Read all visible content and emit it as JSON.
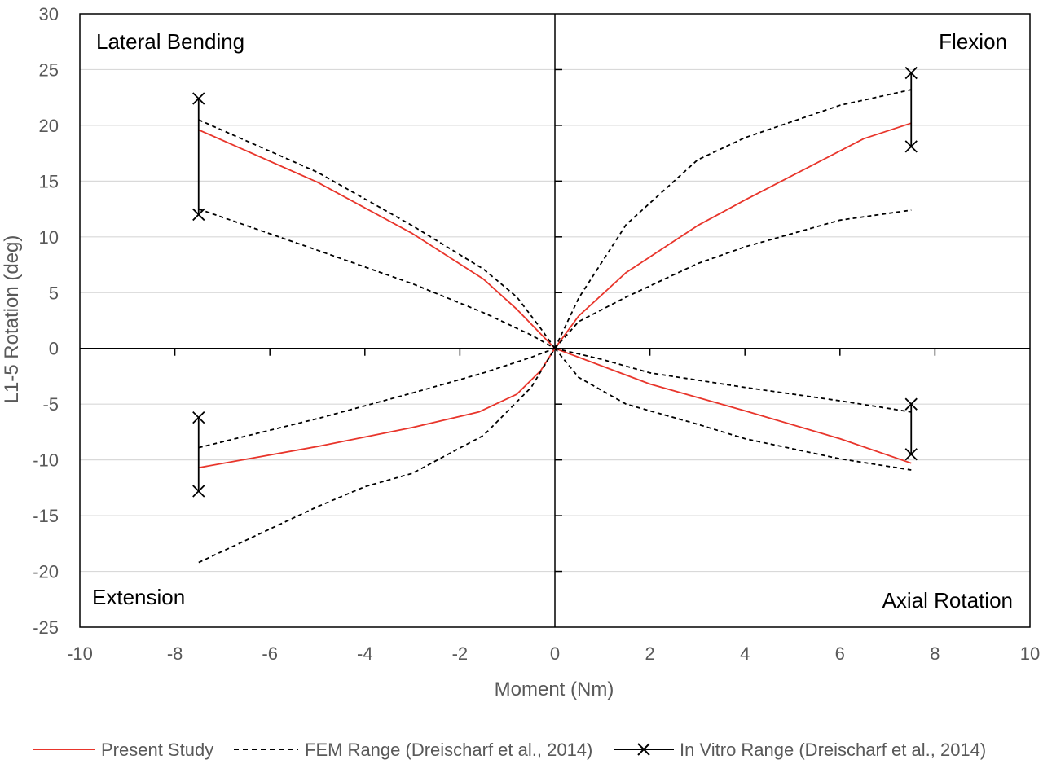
{
  "chart_data": {
    "type": "line",
    "xlabel": "Moment (Nm)",
    "ylabel": "L1-5 Rotation (deg)",
    "xlim": [
      -10,
      10
    ],
    "ylim": [
      -25,
      30
    ],
    "x_ticks": [
      -10,
      -8,
      -6,
      -4,
      -2,
      0,
      2,
      4,
      6,
      8,
      10
    ],
    "y_ticks": [
      30,
      25,
      20,
      15,
      10,
      5,
      0,
      -5,
      -10,
      -15,
      -20,
      -25
    ],
    "grid": "horizontal",
    "legend_position": "bottom",
    "quadrant_labels": {
      "top_left": "Lateral Bending",
      "top_right": "Flexion",
      "bottom_left": "Extension",
      "bottom_right": "Axial Rotation"
    },
    "series": [
      {
        "name": "Present Study",
        "style": "solid",
        "color": "#e8352b",
        "lines": [
          [
            [
              -7.5,
              19.6
            ],
            [
              -5,
              14.9
            ],
            [
              -3,
              10.3
            ],
            [
              -1.5,
              6.2
            ],
            [
              -0.8,
              3.5
            ],
            [
              -0.3,
              1.3
            ],
            [
              0,
              0
            ]
          ],
          [
            [
              0,
              0
            ],
            [
              0.5,
              2.9
            ],
            [
              1.5,
              6.8
            ],
            [
              3,
              11
            ],
            [
              4,
              13.3
            ],
            [
              6.5,
              18.8
            ],
            [
              7.5,
              20.2
            ]
          ],
          [
            [
              -7.5,
              -10.7
            ],
            [
              -5,
              -8.8
            ],
            [
              -3,
              -7.1
            ],
            [
              -1.6,
              -5.7
            ],
            [
              -0.8,
              -4.1
            ],
            [
              -0.3,
              -2
            ],
            [
              0,
              0
            ]
          ],
          [
            [
              0,
              0
            ],
            [
              2,
              -3.2
            ],
            [
              4,
              -5.6
            ],
            [
              6,
              -8.1
            ],
            [
              7.5,
              -10.3
            ]
          ]
        ]
      },
      {
        "name": "FEM Range (Dreischarf et al., 2014)",
        "style": "dashed",
        "color": "#000000",
        "lines": [
          [
            [
              -7.5,
              20.5
            ],
            [
              -5,
              15.8
            ],
            [
              -3,
              11
            ],
            [
              -1.5,
              7.1
            ],
            [
              -0.8,
              4.6
            ],
            [
              -0.3,
              1.8
            ],
            [
              0,
              0
            ]
          ],
          [
            [
              -7.5,
              12.5
            ],
            [
              -5,
              8.8
            ],
            [
              -3,
              5.8
            ],
            [
              -1.5,
              3.2
            ],
            [
              -0.5,
              1.2
            ],
            [
              0,
              0
            ]
          ],
          [
            [
              0,
              0
            ],
            [
              0.5,
              4.5
            ],
            [
              1.5,
              11.1
            ],
            [
              3,
              16.9
            ],
            [
              4,
              18.9
            ],
            [
              6,
              21.8
            ],
            [
              7.5,
              23.2
            ]
          ],
          [
            [
              0,
              0
            ],
            [
              0.5,
              2.4
            ],
            [
              1.5,
              4.6
            ],
            [
              3,
              7.6
            ],
            [
              4,
              9.1
            ],
            [
              6,
              11.5
            ],
            [
              7.5,
              12.4
            ]
          ],
          [
            [
              -7.5,
              -8.9
            ],
            [
              -5,
              -6.3
            ],
            [
              -3,
              -4
            ],
            [
              -1.5,
              -2.2
            ],
            [
              -0.5,
              -0.8
            ],
            [
              0,
              0
            ]
          ],
          [
            [
              -7.5,
              -19.2
            ],
            [
              -5,
              -14.2
            ],
            [
              -4,
              -12.4
            ],
            [
              -3,
              -11.2
            ],
            [
              -1.5,
              -7.8
            ],
            [
              -0.5,
              -3.5
            ],
            [
              0,
              0
            ]
          ],
          [
            [
              0,
              0
            ],
            [
              1,
              -1
            ],
            [
              2,
              -2.2
            ],
            [
              4,
              -3.5
            ],
            [
              6,
              -4.7
            ],
            [
              7.5,
              -5.7
            ]
          ],
          [
            [
              0,
              0
            ],
            [
              0.5,
              -2.6
            ],
            [
              1.5,
              -5
            ],
            [
              3,
              -6.8
            ],
            [
              4,
              -8.1
            ],
            [
              6,
              -9.9
            ],
            [
              7.5,
              -10.9
            ]
          ]
        ]
      },
      {
        "name": "In Vitro Range (Dreischarf et al., 2014)",
        "style": "range",
        "color": "#000000",
        "ranges": [
          {
            "x": -7.5,
            "low": 12,
            "high": 22.4
          },
          {
            "x": 7.5,
            "low": 18.1,
            "high": 24.7
          },
          {
            "x": -7.5,
            "low": -12.8,
            "high": -6.2
          },
          {
            "x": 7.5,
            "low": -9.5,
            "high": -5
          }
        ]
      }
    ]
  }
}
